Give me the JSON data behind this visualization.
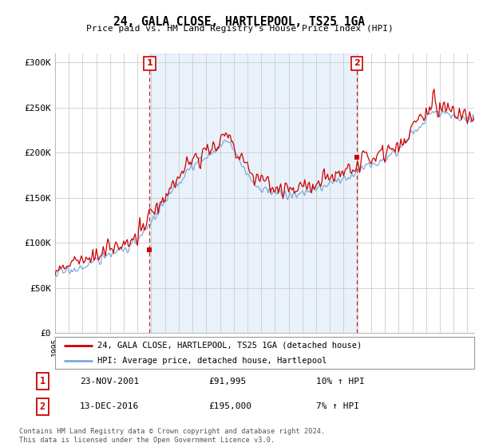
{
  "title": "24, GALA CLOSE, HARTLEPOOL, TS25 1GA",
  "subtitle": "Price paid vs. HM Land Registry's House Price Index (HPI)",
  "hpi_color": "#7faadd",
  "price_color": "#cc0000",
  "vline_color": "#cc0000",
  "shade_color": "#ddeeff",
  "background_color": "#ffffff",
  "grid_color": "#cccccc",
  "ylim": [
    0,
    310000
  ],
  "yticks": [
    0,
    50000,
    100000,
    150000,
    200000,
    250000,
    300000
  ],
  "ytick_labels": [
    "£0",
    "£50K",
    "£100K",
    "£150K",
    "£200K",
    "£250K",
    "£300K"
  ],
  "legend_label_price": "24, GALA CLOSE, HARTLEPOOL, TS25 1GA (detached house)",
  "legend_label_hpi": "HPI: Average price, detached house, Hartlepool",
  "transaction1_date": "23-NOV-2001",
  "transaction1_price": "£91,995",
  "transaction1_hpi": "10% ↑ HPI",
  "transaction1_label": "1",
  "transaction1_x": 2001.88,
  "transaction1_y": 91995,
  "transaction2_date": "13-DEC-2016",
  "transaction2_price": "£195,000",
  "transaction2_hpi": "7% ↑ HPI",
  "transaction2_label": "2",
  "transaction2_x": 2016.95,
  "transaction2_y": 195000,
  "footnote": "Contains HM Land Registry data © Crown copyright and database right 2024.\nThis data is licensed under the Open Government Licence v3.0.",
  "xmin": 1995.0,
  "xmax": 2025.5
}
